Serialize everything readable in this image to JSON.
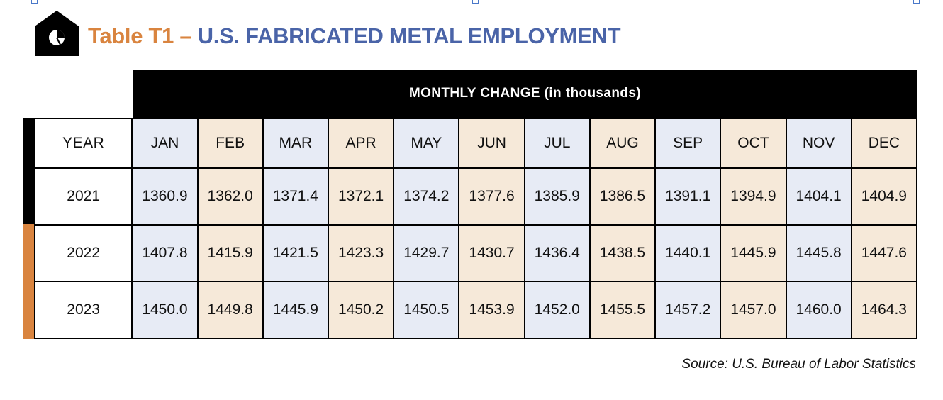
{
  "title": {
    "label": "Table T1",
    "dash": "–",
    "main": "U.S. FABRICATED METAL EMPLOYMENT"
  },
  "header": "MONTHLY CHANGE (in thousands)",
  "source": "Source: U.S. Bureau of Labor Statistics",
  "colors": {
    "orange": "#d9843f",
    "blue_title": "#4a64a8",
    "cell_blue": "#e7ebf5",
    "cell_tan": "#f6e9d9"
  },
  "icon": "pie-chart-house-icon",
  "chart_data": {
    "type": "table",
    "title": "Table T1 – U.S. FABRICATED METAL EMPLOYMENT",
    "header": "MONTHLY CHANGE (in thousands)",
    "row_header": "YEAR",
    "columns": [
      "JAN",
      "FEB",
      "MAR",
      "APR",
      "MAY",
      "JUN",
      "JUL",
      "AUG",
      "SEP",
      "OCT",
      "NOV",
      "DEC"
    ],
    "rows": [
      {
        "year": "2021",
        "values": [
          "1360.9",
          "1362.0",
          "1371.4",
          "1372.1",
          "1374.2",
          "1377.6",
          "1385.9",
          "1386.5",
          "1391.1",
          "1394.9",
          "1404.1",
          "1404.9"
        ]
      },
      {
        "year": "2022",
        "values": [
          "1407.8",
          "1415.9",
          "1421.5",
          "1423.3",
          "1429.7",
          "1430.7",
          "1436.4",
          "1438.5",
          "1440.1",
          "1445.9",
          "1445.8",
          "1447.6"
        ]
      },
      {
        "year": "2023",
        "values": [
          "1450.0",
          "1449.8",
          "1445.9",
          "1450.2",
          "1450.5",
          "1453.9",
          "1452.0",
          "1455.5",
          "1457.2",
          "1457.0",
          "1460.0",
          "1464.3"
        ]
      }
    ]
  }
}
